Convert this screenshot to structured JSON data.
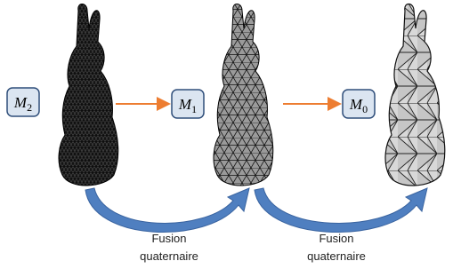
{
  "nodes": [
    {
      "label": {
        "base": "M",
        "sub": "2"
      }
    },
    {
      "label": {
        "base": "M",
        "sub": "1"
      }
    },
    {
      "label": {
        "base": "M",
        "sub": "0"
      }
    }
  ],
  "edges": [
    {
      "label": [
        "Fusion",
        "quaternaire"
      ]
    },
    {
      "label": [
        "Fusion",
        "quaternaire"
      ]
    }
  ]
}
